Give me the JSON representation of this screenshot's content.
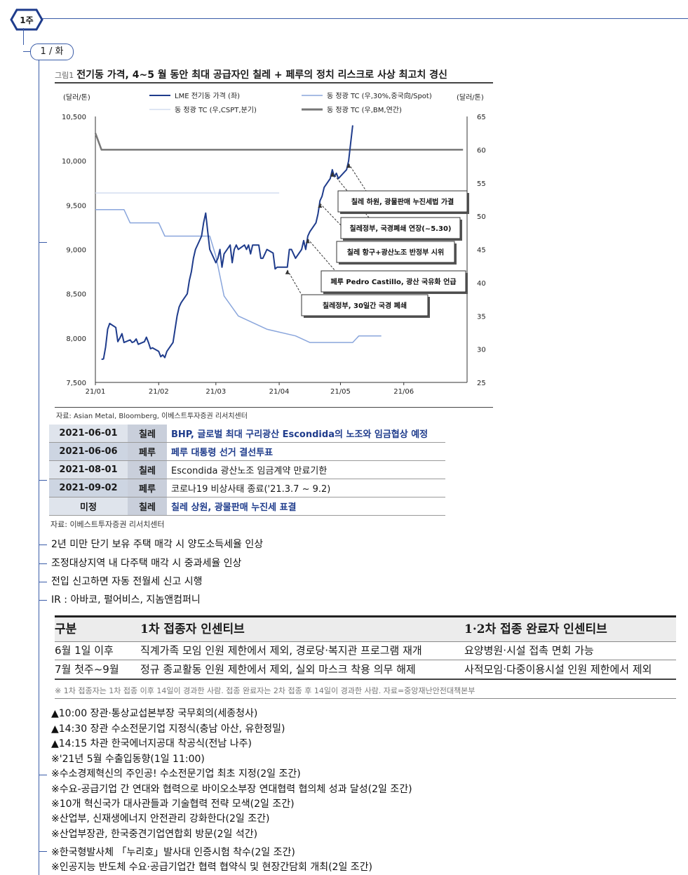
{
  "outline": {
    "badge": "1주",
    "node": "1 / 화"
  },
  "figure": {
    "caption_prefix": "그림1",
    "title": "전기동 가격, 4~5 월 동안 최대 공급자인 칠레 + 페루의 정치 리스크로 사상 최고치 경신",
    "source": "자료: Asian Metal, Bloomberg, 이베스트투자증권 리서치센터"
  },
  "chart_data": {
    "type": "line",
    "y_left_label": "(달러/톤)",
    "y_right_label": "(달러/톤)",
    "ylim_left": [
      7500,
      10500
    ],
    "ylim_right": [
      25,
      65
    ],
    "y_left_ticks": [
      "10,500",
      "10,000",
      "9,500",
      "9,000",
      "8,500",
      "8,000",
      "7,500"
    ],
    "y_right_ticks": [
      "65",
      "60",
      "55",
      "50",
      "45",
      "40",
      "35",
      "30",
      "25"
    ],
    "x_ticks": [
      "21/01",
      "21/02",
      "21/03",
      "21/04",
      "21/05",
      "21/06"
    ],
    "legend": [
      "LME 전기동 가격 (좌)",
      "동 정광 TC (우,30%,중국向/Spot)",
      "동 정광 TC (우,CSPT,분기)",
      "동 정광 TC (우,BM,연간)"
    ],
    "legend_colors": [
      "#1f3c8c",
      "#8aa6dc",
      "#d3ddf1",
      "#777777"
    ],
    "series": [
      {
        "name": "LME 전기동 가격 (좌)",
        "axis": "left",
        "points": [
          [
            "2021-01-04",
            7760
          ],
          [
            "2021-01-05",
            7765
          ],
          [
            "2021-01-06",
            7900
          ],
          [
            "2021-01-07",
            8100
          ],
          [
            "2021-01-08",
            8165
          ],
          [
            "2021-01-11",
            8120
          ],
          [
            "2021-01-12",
            7960
          ],
          [
            "2021-01-13",
            8000
          ],
          [
            "2021-01-14",
            8050
          ],
          [
            "2021-01-15",
            7950
          ],
          [
            "2021-01-18",
            7980
          ],
          [
            "2021-01-19",
            7950
          ],
          [
            "2021-01-20",
            7960
          ],
          [
            "2021-01-21",
            7990
          ],
          [
            "2021-01-22",
            7930
          ],
          [
            "2021-01-25",
            7960
          ],
          [
            "2021-01-26",
            8010
          ],
          [
            "2021-01-27",
            7950
          ],
          [
            "2021-01-28",
            7880
          ],
          [
            "2021-01-29",
            7890
          ],
          [
            "2021-02-01",
            7850
          ],
          [
            "2021-02-02",
            7790
          ],
          [
            "2021-02-03",
            7810
          ],
          [
            "2021-02-04",
            7780
          ],
          [
            "2021-02-05",
            7850
          ],
          [
            "2021-02-08",
            7950
          ],
          [
            "2021-02-09",
            8100
          ],
          [
            "2021-02-10",
            8250
          ],
          [
            "2021-02-11",
            8350
          ],
          [
            "2021-02-12",
            8400
          ],
          [
            "2021-02-15",
            8500
          ],
          [
            "2021-02-16",
            8650
          ],
          [
            "2021-02-17",
            8750
          ],
          [
            "2021-02-18",
            8900
          ],
          [
            "2021-02-19",
            9000
          ],
          [
            "2021-02-22",
            9150
          ],
          [
            "2021-02-23",
            9300
          ],
          [
            "2021-02-24",
            9410
          ],
          [
            "2021-02-25",
            9200
          ],
          [
            "2021-02-26",
            9000
          ],
          [
            "2021-03-01",
            8850
          ],
          [
            "2021-03-02",
            8900
          ],
          [
            "2021-03-03",
            9000
          ],
          [
            "2021-03-04",
            8800
          ],
          [
            "2021-03-05",
            8950
          ],
          [
            "2021-03-08",
            9050
          ],
          [
            "2021-03-09",
            8850
          ],
          [
            "2021-03-10",
            9000
          ],
          [
            "2021-03-11",
            9050
          ],
          [
            "2021-03-12",
            9000
          ],
          [
            "2021-03-15",
            9050
          ],
          [
            "2021-03-16",
            9000
          ],
          [
            "2021-03-17",
            9050
          ],
          [
            "2021-03-18",
            8950
          ],
          [
            "2021-03-19",
            9050
          ],
          [
            "2021-03-22",
            9050
          ],
          [
            "2021-03-23",
            8900
          ],
          [
            "2021-03-24",
            8900
          ],
          [
            "2021-03-25",
            8950
          ],
          [
            "2021-03-26",
            9000
          ],
          [
            "2021-03-29",
            8960
          ],
          [
            "2021-03-30",
            8780
          ],
          [
            "2021-03-31",
            8800
          ],
          [
            "2021-04-01",
            8800
          ],
          [
            "2021-04-02",
            8800
          ],
          [
            "2021-04-05",
            8800
          ],
          [
            "2021-04-06",
            9000
          ],
          [
            "2021-04-07",
            9000
          ],
          [
            "2021-04-08",
            8950
          ],
          [
            "2021-04-09",
            8900
          ],
          [
            "2021-04-12",
            9000
          ],
          [
            "2021-04-13",
            9100
          ],
          [
            "2021-04-14",
            9000
          ],
          [
            "2021-04-15",
            9150
          ],
          [
            "2021-04-16",
            9200
          ],
          [
            "2021-04-19",
            9300
          ],
          [
            "2021-04-20",
            9400
          ],
          [
            "2021-04-21",
            9550
          ],
          [
            "2021-04-22",
            9600
          ],
          [
            "2021-04-23",
            9700
          ],
          [
            "2021-04-26",
            9800
          ],
          [
            "2021-04-27",
            9900
          ],
          [
            "2021-04-28",
            9820
          ],
          [
            "2021-04-29",
            9860
          ],
          [
            "2021-04-30",
            9800
          ],
          [
            "2021-05-04",
            9900
          ],
          [
            "2021-05-05",
            10000
          ],
          [
            "2021-05-06",
            10200
          ],
          [
            "2021-05-07",
            10400
          ]
        ]
      },
      {
        "name": "동 정광 TC (우,30%,중국向/Spot)",
        "axis": "right",
        "points": [
          [
            "2021-01-01",
            51
          ],
          [
            "2021-01-15",
            51
          ],
          [
            "2021-01-18",
            49
          ],
          [
            "2021-02-01",
            49
          ],
          [
            "2021-02-04",
            47
          ],
          [
            "2021-02-26",
            47
          ],
          [
            "2021-03-01",
            44
          ],
          [
            "2021-03-05",
            38
          ],
          [
            "2021-03-12",
            35
          ],
          [
            "2021-03-26",
            33
          ],
          [
            "2021-04-09",
            32
          ],
          [
            "2021-04-16",
            31
          ],
          [
            "2021-05-07",
            31
          ],
          [
            "2021-05-10",
            32
          ],
          [
            "2021-05-21",
            32
          ]
        ]
      },
      {
        "name": "동 정광 TC (우,CSPT,분기)",
        "axis": "right",
        "points": [
          [
            "2021-01-01",
            53.5
          ],
          [
            "2021-04-01",
            53.5
          ]
        ]
      },
      {
        "name": "동 정광 TC (우,BM,연간)",
        "axis": "right",
        "points": [
          [
            "2021-01-01",
            62.5
          ],
          [
            "2021-01-04",
            60
          ],
          [
            "2021-06-30",
            60
          ]
        ]
      }
    ],
    "annotations": [
      {
        "text": "칠레정부, 30일간 국경 폐쇄",
        "target": [
          "2021-04-05",
          8800
        ]
      },
      {
        "text": "페루 Pedro Castillo, 광산 국유화 언급",
        "target": [
          "2021-04-15",
          9150
        ]
      },
      {
        "text": "칠레 항구+광산노조 반정부 시위",
        "target": [
          "2021-04-21",
          9550
        ]
      },
      {
        "text": "칠레정부, 국경폐쇄 연장(~5.30)",
        "target": [
          "2021-04-27",
          9900
        ]
      },
      {
        "text": "칠레 하원, 광물판매 누진세법 가결",
        "target": [
          "2021-05-05",
          10000
        ]
      }
    ]
  },
  "events": {
    "rows": [
      {
        "date": "2021-06-01",
        "country": "칠레",
        "text": "BHP, 글로벌 최대 구리광산 Escondida의 노조와 임금협상 예정",
        "bold": true
      },
      {
        "date": "2021-06-06",
        "country": "페루",
        "text": "페루 대통령 선거 결선투표",
        "bold": true
      },
      {
        "date": "2021-08-01",
        "country": "칠레",
        "text": "Escondida 광산노조 임금계약 만료기한",
        "bold": false
      },
      {
        "date": "2021-09-02",
        "country": "페루",
        "text": "코로나19 비상사태 종료('21.3.7 ~ 9.2)",
        "bold": false
      },
      {
        "date": "미정",
        "country": "칠레",
        "text": "칠레 상원, 광물판매 누진세 표결",
        "bold": true
      }
    ],
    "source": "자료: 이베스트투자증권 리서치센터"
  },
  "items_a": [
    "2년 미만 단기 보유 주택 매각 시 양도소득세율 인상",
    "조정대상지역 내 다주택 매각 시 중과세율 인상",
    "전입 신고하면 자동 전월세 신고 시행",
    "IR : 아바코, 펄어비스, 지놈앤컴퍼니"
  ],
  "incentive": {
    "headers": [
      "구분",
      "1차 접종자 인센티브",
      "1·2차 접종 완료자 인센티브"
    ],
    "rows": [
      [
        "6월 1일 이후",
        "직계가족 모임 인원 제한에서 제외, 경로당·복지관 프로그램 재개",
        "요양병원·시설 접촉 면회 가능"
      ],
      [
        "7월 첫주~9월",
        "정규 종교활동 인원 제한에서 제외, 실외 마스크 착용 의무 해제",
        "사적모임·다중이용시설 인원 제한에서 제외"
      ]
    ],
    "note": "※ 1차 접종자는 1차 접종 이후 14일이 경과한 사람. 접종 완료자는 2차 접종 후 14일이 경과한 사람. 자료=중앙재난안전대책본부"
  },
  "items_b": [
    "▲10:00  장관·통상교섭본부장  국무회의(세종청사)",
    "▲14:30  장관 수소전문기업 지정식(충남 아산, 유한정밀)",
    "▲14:15  차관 한국에너지공대 착공식(전남 나주)",
    "※'21년 5월 수출입동향(1일 11:00)",
    "※수소경제혁신의 주인공! 수소전문기업 최초 지정(2일 조간)",
    "※수요-공급기업 간 연대와 협력으로 바이오소부장 연대협력 협의체 성과 달성(2일 조간)",
    "※10개 혁신국가 대사관들과 기술협력 전략 모색(2일 조간)",
    "※산업부, 신재생에너지 안전관리 강화한다(2일 조간)",
    "※산업부장관, 한국중견기업연합회 방문(2일 석간)",
    "※한국형발사체 「누리호」발사대 인증시험 착수(2일 조간)",
    "※인공지능 반도체 수요·공급기업간 협력 협약식 및 현장간담회 개최(2일 조간)"
  ]
}
